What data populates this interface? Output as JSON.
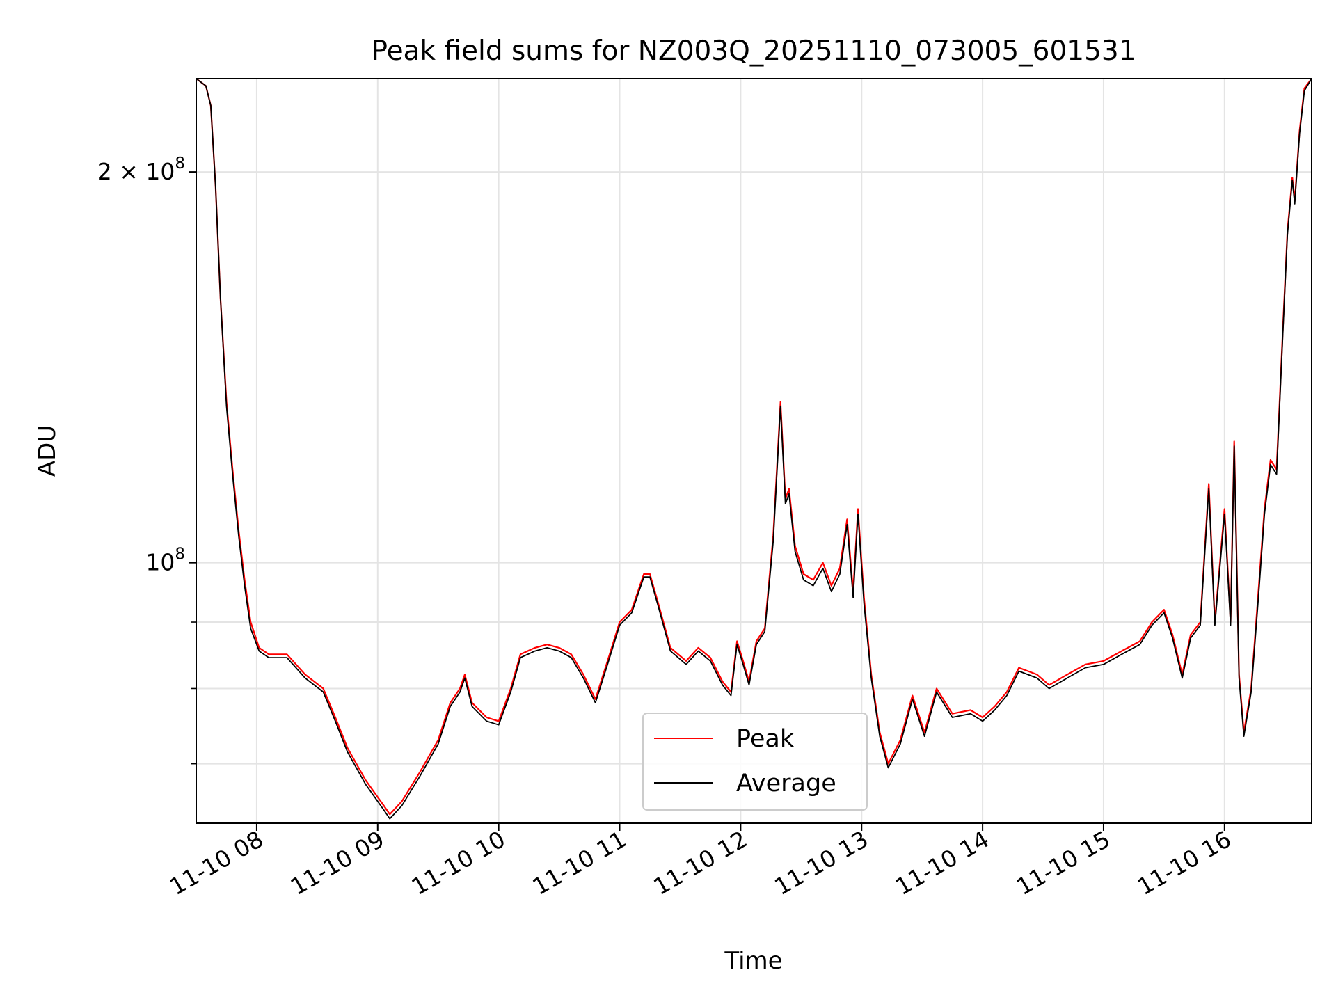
{
  "chart_data": {
    "type": "line",
    "title": "Peak field sums for NZ003Q_20251110_073005_601531",
    "xlabel": "Time",
    "ylabel": "ADU",
    "yscale": "log",
    "x_unit": "hours",
    "xlim": [
      7.5,
      16.72
    ],
    "ylim": [
      63000000,
      236000000
    ],
    "x_ticks": [
      8,
      9,
      10,
      11,
      12,
      13,
      14,
      15,
      16
    ],
    "x_tick_labels": [
      "11-10 08",
      "11-10 09",
      "11-10 10",
      "11-10 11",
      "11-10 12",
      "11-10 13",
      "11-10 14",
      "11-10 15",
      "11-10 16"
    ],
    "y_ticks_major": [
      100000000,
      200000000
    ],
    "y_tick_labels": [
      {
        "mantissa": "",
        "base": "10",
        "exp": "8"
      },
      {
        "mantissa": "2 × ",
        "base": "10",
        "exp": "8"
      }
    ],
    "y_ticks_minor": [
      70000000,
      80000000,
      90000000
    ],
    "grid": true,
    "legend_position": "lower-center",
    "series": [
      {
        "name": "Peak",
        "color": "#ff0000",
        "points": [
          [
            7.5,
            236000000
          ],
          [
            7.58,
            233000000
          ],
          [
            7.62,
            225000000
          ],
          [
            7.66,
            195000000
          ],
          [
            7.7,
            160000000
          ],
          [
            7.75,
            133000000
          ],
          [
            7.8,
            118000000
          ],
          [
            7.85,
            106000000
          ],
          [
            7.9,
            97000000
          ],
          [
            7.95,
            90000000
          ],
          [
            8.02,
            86000000
          ],
          [
            8.1,
            85000000
          ],
          [
            8.25,
            85000000
          ],
          [
            8.4,
            82000000
          ],
          [
            8.55,
            80000000
          ],
          [
            8.65,
            76000000
          ],
          [
            8.75,
            72000000
          ],
          [
            8.9,
            68000000
          ],
          [
            9.05,
            65000000
          ],
          [
            9.1,
            64000000
          ],
          [
            9.2,
            65500000
          ],
          [
            9.35,
            69000000
          ],
          [
            9.5,
            73000000
          ],
          [
            9.6,
            78000000
          ],
          [
            9.68,
            80000000
          ],
          [
            9.72,
            82000000
          ],
          [
            9.78,
            78000000
          ],
          [
            9.9,
            76000000
          ],
          [
            10.0,
            75500000
          ],
          [
            10.1,
            80000000
          ],
          [
            10.18,
            85000000
          ],
          [
            10.3,
            86000000
          ],
          [
            10.4,
            86500000
          ],
          [
            10.5,
            86000000
          ],
          [
            10.6,
            85000000
          ],
          [
            10.7,
            82000000
          ],
          [
            10.8,
            78500000
          ],
          [
            10.9,
            84000000
          ],
          [
            11.0,
            90000000
          ],
          [
            11.1,
            92000000
          ],
          [
            11.2,
            98000000
          ],
          [
            11.25,
            98000000
          ],
          [
            11.32,
            93000000
          ],
          [
            11.42,
            86000000
          ],
          [
            11.55,
            84000000
          ],
          [
            11.65,
            86000000
          ],
          [
            11.75,
            84500000
          ],
          [
            11.85,
            81000000
          ],
          [
            11.92,
            79500000
          ],
          [
            11.97,
            87000000
          ],
          [
            12.02,
            84000000
          ],
          [
            12.07,
            81000000
          ],
          [
            12.13,
            87000000
          ],
          [
            12.2,
            89000000
          ],
          [
            12.27,
            105000000
          ],
          [
            12.33,
            133000000
          ],
          [
            12.37,
            112000000
          ],
          [
            12.4,
            114000000
          ],
          [
            12.45,
            103000000
          ],
          [
            12.52,
            98000000
          ],
          [
            12.6,
            97000000
          ],
          [
            12.68,
            100000000
          ],
          [
            12.75,
            96000000
          ],
          [
            12.82,
            99000000
          ],
          [
            12.88,
            108000000
          ],
          [
            12.93,
            95000000
          ],
          [
            12.97,
            110000000
          ],
          [
            13.02,
            94000000
          ],
          [
            13.08,
            82000000
          ],
          [
            13.15,
            74000000
          ],
          [
            13.22,
            70000000
          ],
          [
            13.32,
            73000000
          ],
          [
            13.42,
            79000000
          ],
          [
            13.52,
            74000000
          ],
          [
            13.62,
            80000000
          ],
          [
            13.75,
            76500000
          ],
          [
            13.9,
            77000000
          ],
          [
            14.0,
            76000000
          ],
          [
            14.1,
            77500000
          ],
          [
            14.2,
            79500000
          ],
          [
            14.3,
            83000000
          ],
          [
            14.45,
            82000000
          ],
          [
            14.55,
            80500000
          ],
          [
            14.7,
            82000000
          ],
          [
            14.85,
            83500000
          ],
          [
            15.0,
            84000000
          ],
          [
            15.15,
            85500000
          ],
          [
            15.3,
            87000000
          ],
          [
            15.4,
            90000000
          ],
          [
            15.5,
            92000000
          ],
          [
            15.57,
            88000000
          ],
          [
            15.65,
            82000000
          ],
          [
            15.72,
            88000000
          ],
          [
            15.8,
            90000000
          ],
          [
            15.87,
            115000000
          ],
          [
            15.92,
            90000000
          ],
          [
            16.0,
            110000000
          ],
          [
            16.05,
            90000000
          ],
          [
            16.08,
            124000000
          ],
          [
            16.12,
            82000000
          ],
          [
            16.16,
            74000000
          ],
          [
            16.22,
            80000000
          ],
          [
            16.28,
            95000000
          ],
          [
            16.33,
            110000000
          ],
          [
            16.38,
            120000000
          ],
          [
            16.43,
            118000000
          ],
          [
            16.48,
            150000000
          ],
          [
            16.52,
            180000000
          ],
          [
            16.56,
            198000000
          ],
          [
            16.58,
            190000000
          ],
          [
            16.62,
            215000000
          ],
          [
            16.66,
            232000000
          ],
          [
            16.72,
            236000000
          ]
        ]
      },
      {
        "name": "Average",
        "color": "#000000",
        "points": [
          [
            7.5,
            236000000
          ],
          [
            7.58,
            233000000
          ],
          [
            7.62,
            225000000
          ],
          [
            7.66,
            195000000
          ],
          [
            7.7,
            160000000
          ],
          [
            7.75,
            132000000
          ],
          [
            7.8,
            117000000
          ],
          [
            7.85,
            105000000
          ],
          [
            7.9,
            96000000
          ],
          [
            7.95,
            89000000
          ],
          [
            8.02,
            85500000
          ],
          [
            8.1,
            84500000
          ],
          [
            8.25,
            84500000
          ],
          [
            8.4,
            81500000
          ],
          [
            8.55,
            79500000
          ],
          [
            8.65,
            75500000
          ],
          [
            8.75,
            71500000
          ],
          [
            8.9,
            67500000
          ],
          [
            9.05,
            64500000
          ],
          [
            9.1,
            63500000
          ],
          [
            9.2,
            65000000
          ],
          [
            9.35,
            68500000
          ],
          [
            9.5,
            72500000
          ],
          [
            9.6,
            77500000
          ],
          [
            9.68,
            79500000
          ],
          [
            9.72,
            81500000
          ],
          [
            9.78,
            77500000
          ],
          [
            9.9,
            75500000
          ],
          [
            10.0,
            75000000
          ],
          [
            10.1,
            79500000
          ],
          [
            10.18,
            84500000
          ],
          [
            10.3,
            85500000
          ],
          [
            10.4,
            86000000
          ],
          [
            10.5,
            85500000
          ],
          [
            10.6,
            84500000
          ],
          [
            10.7,
            81500000
          ],
          [
            10.8,
            78000000
          ],
          [
            10.9,
            83500000
          ],
          [
            11.0,
            89500000
          ],
          [
            11.1,
            91500000
          ],
          [
            11.2,
            97500000
          ],
          [
            11.25,
            97500000
          ],
          [
            11.32,
            92500000
          ],
          [
            11.42,
            85500000
          ],
          [
            11.55,
            83500000
          ],
          [
            11.65,
            85500000
          ],
          [
            11.75,
            84000000
          ],
          [
            11.85,
            80500000
          ],
          [
            11.92,
            79000000
          ],
          [
            11.97,
            86500000
          ],
          [
            12.02,
            83500000
          ],
          [
            12.07,
            80500000
          ],
          [
            12.13,
            86500000
          ],
          [
            12.2,
            88500000
          ],
          [
            12.27,
            104000000
          ],
          [
            12.33,
            132000000
          ],
          [
            12.37,
            111000000
          ],
          [
            12.4,
            113000000
          ],
          [
            12.45,
            102000000
          ],
          [
            12.52,
            97000000
          ],
          [
            12.6,
            96000000
          ],
          [
            12.68,
            99000000
          ],
          [
            12.75,
            95000000
          ],
          [
            12.82,
            98000000
          ],
          [
            12.88,
            107000000
          ],
          [
            12.93,
            94000000
          ],
          [
            12.97,
            109000000
          ],
          [
            13.02,
            93000000
          ],
          [
            13.08,
            81500000
          ],
          [
            13.15,
            73500000
          ],
          [
            13.22,
            69500000
          ],
          [
            13.32,
            72500000
          ],
          [
            13.42,
            78500000
          ],
          [
            13.52,
            73500000
          ],
          [
            13.62,
            79500000
          ],
          [
            13.75,
            76000000
          ],
          [
            13.9,
            76500000
          ],
          [
            14.0,
            75500000
          ],
          [
            14.1,
            77000000
          ],
          [
            14.2,
            79000000
          ],
          [
            14.3,
            82500000
          ],
          [
            14.45,
            81500000
          ],
          [
            14.55,
            80000000
          ],
          [
            14.7,
            81500000
          ],
          [
            14.85,
            83000000
          ],
          [
            15.0,
            83500000
          ],
          [
            15.15,
            85000000
          ],
          [
            15.3,
            86500000
          ],
          [
            15.4,
            89500000
          ],
          [
            15.5,
            91500000
          ],
          [
            15.57,
            87500000
          ],
          [
            15.65,
            81500000
          ],
          [
            15.72,
            87500000
          ],
          [
            15.8,
            89500000
          ],
          [
            15.87,
            114000000
          ],
          [
            15.92,
            89500000
          ],
          [
            16.0,
            109000000
          ],
          [
            16.05,
            89500000
          ],
          [
            16.08,
            123000000
          ],
          [
            16.12,
            81500000
          ],
          [
            16.16,
            73500000
          ],
          [
            16.22,
            79500000
          ],
          [
            16.28,
            94000000
          ],
          [
            16.33,
            109000000
          ],
          [
            16.38,
            119000000
          ],
          [
            16.43,
            117000000
          ],
          [
            16.48,
            149000000
          ],
          [
            16.52,
            179000000
          ],
          [
            16.56,
            197000000
          ],
          [
            16.58,
            189000000
          ],
          [
            16.62,
            214000000
          ],
          [
            16.66,
            231000000
          ],
          [
            16.72,
            236000000
          ]
        ]
      }
    ]
  }
}
